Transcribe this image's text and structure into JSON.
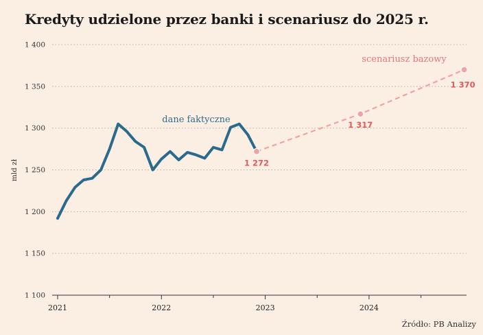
{
  "title": "Kredyty udzielone przez banki i scenariusz do 2025 r.",
  "source": "Źródło: PB Analizy",
  "colors": {
    "background": "#fbeee2",
    "actual": "#2a6a8c",
    "scenario": "#f0a3a3",
    "scenario_label": "#e2767a",
    "scenario_value": "#e05a5e",
    "grid": "#b8aea5",
    "axis": "#333333"
  },
  "chart_data": {
    "type": "line",
    "title": "Kredyty udzielone przez banki i scenariusz do 2025 r.",
    "ylabel": "mld zł",
    "xlabel": "",
    "ylim": [
      1100,
      1400
    ],
    "yticks": [
      1100,
      1150,
      1200,
      1250,
      1300,
      1350,
      1400
    ],
    "ytick_labels": [
      "1 100",
      "1 150",
      "1 200",
      "1 250",
      "1 300",
      "1 350",
      "1 400"
    ],
    "xlim": [
      "2021-01",
      "2024-12"
    ],
    "xtick_labels": [
      "2021",
      "2022",
      "2023",
      "2024"
    ],
    "xtick_values": [
      "2021-01",
      "2022-01",
      "2023-01",
      "2024-01"
    ],
    "minor_xticks": [
      "2021-07",
      "2022-07",
      "2023-07",
      "2024-07"
    ],
    "grid": "horizontal dotted",
    "series": [
      {
        "name": "dane faktyczne",
        "style": "solid",
        "x": [
          "2021-01",
          "2021-02",
          "2021-03",
          "2021-04",
          "2021-05",
          "2021-06",
          "2021-07",
          "2021-08",
          "2021-09",
          "2021-10",
          "2021-11",
          "2021-12",
          "2022-01",
          "2022-02",
          "2022-03",
          "2022-04",
          "2022-05",
          "2022-06",
          "2022-07",
          "2022-08",
          "2022-09",
          "2022-10",
          "2022-11",
          "2022-12"
        ],
        "values": [
          1192,
          1213,
          1229,
          1238,
          1240,
          1250,
          1275,
          1305,
          1296,
          1284,
          1277,
          1250,
          1263,
          1272,
          1262,
          1271,
          1268,
          1264,
          1277,
          1274,
          1301,
          1305,
          1292,
          1272
        ]
      },
      {
        "name": "scenariusz bazowy",
        "style": "dashed",
        "x": [
          "2022-12",
          "2023-12",
          "2024-12"
        ],
        "values": [
          1272,
          1317,
          1370
        ],
        "labels": [
          "1 272",
          "1 317",
          "1 370"
        ]
      }
    ]
  }
}
